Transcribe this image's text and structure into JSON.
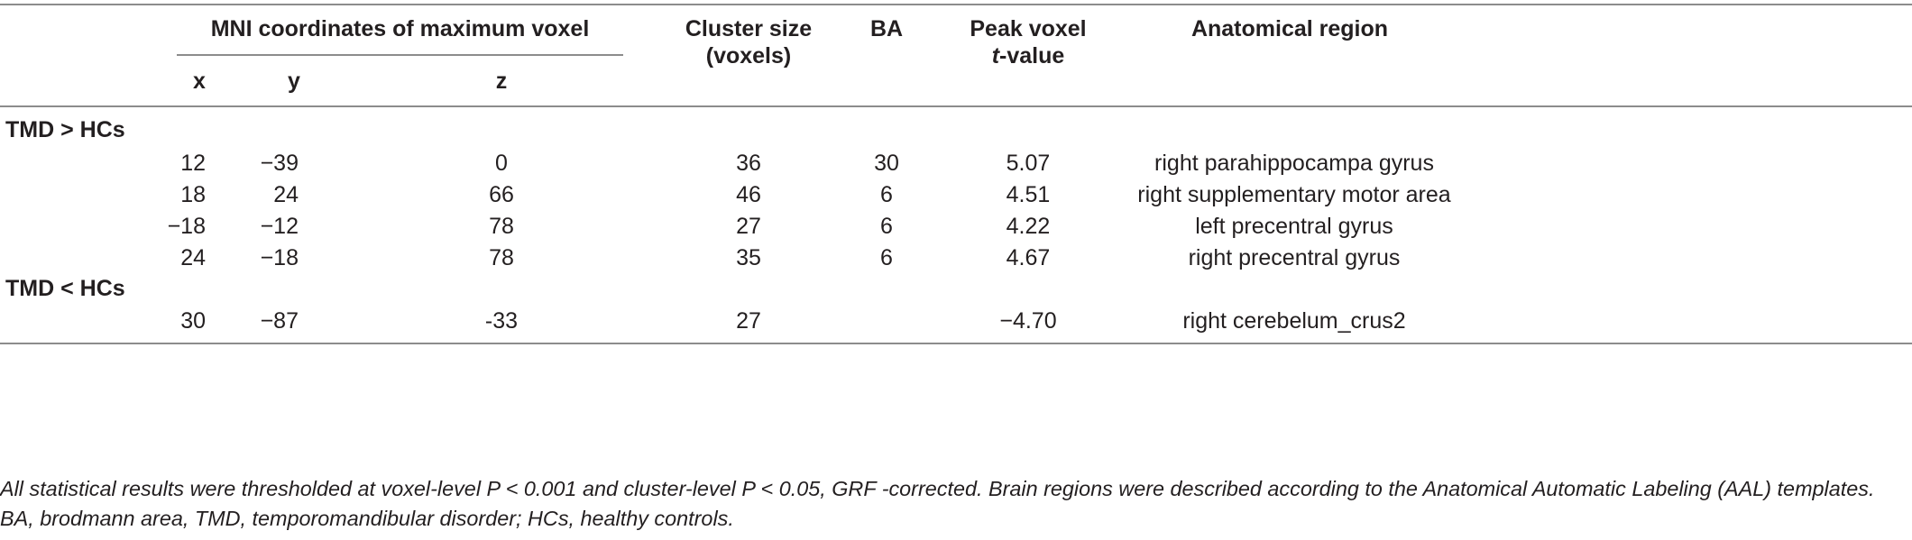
{
  "header": {
    "mni_group": "MNI coordinates of maximum voxel",
    "x": "x",
    "y": "y",
    "z": "z",
    "cluster_size_line1": "Cluster size",
    "cluster_size_line2": "(voxels)",
    "ba": "BA",
    "peak_line1": "Peak voxel",
    "peak_t": "t",
    "peak_value_suffix": "-value",
    "region": "Anatomical region"
  },
  "groups": [
    {
      "label": "TMD > HCs",
      "rows": [
        {
          "x": "12",
          "y": "−39",
          "z": "0",
          "cluster": "36",
          "ba": "30",
          "t": "5.07",
          "region": "right parahippocampa gyrus"
        },
        {
          "x": "18",
          "y": "24",
          "z": "66",
          "cluster": "46",
          "ba": "6",
          "t": "4.51",
          "region": "right supplementary motor area"
        },
        {
          "x": "−18",
          "y": "−12",
          "z": "78",
          "cluster": "27",
          "ba": "6",
          "t": "4.22",
          "region": "left precentral gyrus"
        },
        {
          "x": "24",
          "y": "−18",
          "z": "78",
          "cluster": "35",
          "ba": "6",
          "t": "4.67",
          "region": "right precentral gyrus"
        }
      ]
    },
    {
      "label": "TMD < HCs",
      "rows": [
        {
          "x": "30",
          "y": "−87",
          "z": "-33",
          "cluster": "27",
          "ba": "",
          "t": "−4.70",
          "region": "right cerebelum_crus2"
        }
      ]
    }
  ],
  "footnote": "All statistical results were thresholded at voxel-level P < 0.001 and cluster-level P < 0.05, GRF -corrected. Brain regions were described according to the Anatomical Automatic Labeling (AAL) templates. BA, brodmann area, TMD, temporomandibular disorder; HCs, healthy controls."
}
